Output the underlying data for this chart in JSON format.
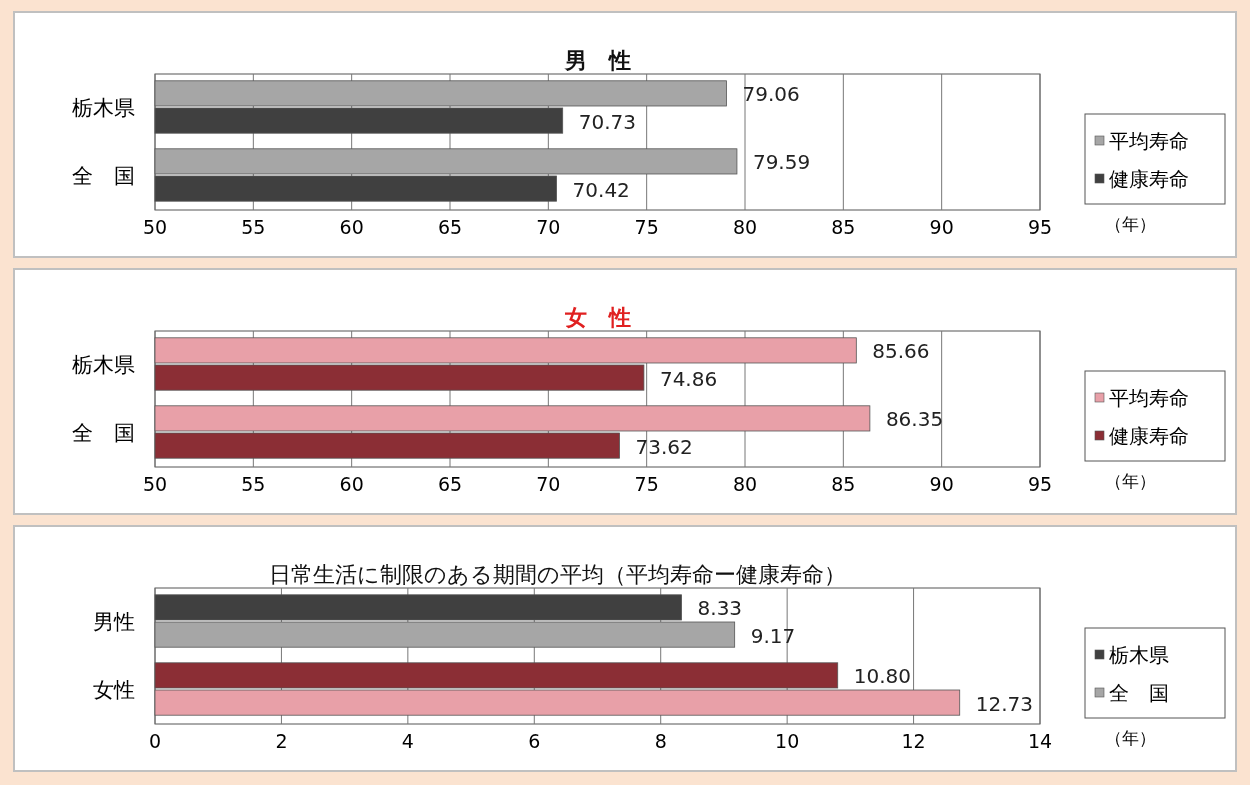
{
  "chart_data": [
    {
      "type": "bar",
      "orientation": "horizontal",
      "title": "男　性",
      "categories": [
        "栃木県",
        "全　国"
      ],
      "series": [
        {
          "name": "平均寿命",
          "color": "#a6a6a6",
          "values": [
            79.06,
            79.59
          ]
        },
        {
          "name": "健康寿命",
          "color": "#404040",
          "values": [
            70.73,
            70.42
          ]
        }
      ],
      "xlim": [
        50,
        95
      ],
      "xticks": [
        50,
        55,
        60,
        65,
        70,
        75,
        80,
        85,
        90,
        95
      ],
      "xlabel": "（年）",
      "grid": "x",
      "legend": "right",
      "data_labels": true
    },
    {
      "type": "bar",
      "orientation": "horizontal",
      "title": "女　性",
      "categories": [
        "栃木県",
        "全　国"
      ],
      "series": [
        {
          "name": "平均寿命",
          "color": "#e8a0a8",
          "values": [
            85.66,
            86.35
          ]
        },
        {
          "name": "健康寿命",
          "color": "#8b2e35",
          "values": [
            74.86,
            73.62
          ]
        }
      ],
      "xlim": [
        50,
        95
      ],
      "xticks": [
        50,
        55,
        60,
        65,
        70,
        75,
        80,
        85,
        90,
        95
      ],
      "xlabel": "（年）",
      "grid": "x",
      "legend": "right",
      "data_labels": true
    },
    {
      "type": "bar",
      "orientation": "horizontal",
      "title": "日常生活に制限のある期間の平均（平均寿命ー健康寿命）",
      "categories": [
        "男性",
        "女性"
      ],
      "series": [
        {
          "name": "栃木県",
          "color": "#404040",
          "colors": [
            "#404040",
            "#8b2e35"
          ],
          "values": [
            8.33,
            10.8
          ],
          "value_labels": [
            "8.33",
            "10.80"
          ]
        },
        {
          "name": "全　国",
          "color": "#a6a6a6",
          "colors": [
            "#a6a6a6",
            "#e8a0a8"
          ],
          "values": [
            9.17,
            12.73
          ],
          "value_labels": [
            "9.17",
            "12.73"
          ]
        }
      ],
      "xlim": [
        0,
        14
      ],
      "xticks": [
        0,
        2,
        4,
        6,
        8,
        10,
        12,
        14
      ],
      "xlabel": "（年）",
      "grid": "x",
      "legend": "right"
    }
  ]
}
